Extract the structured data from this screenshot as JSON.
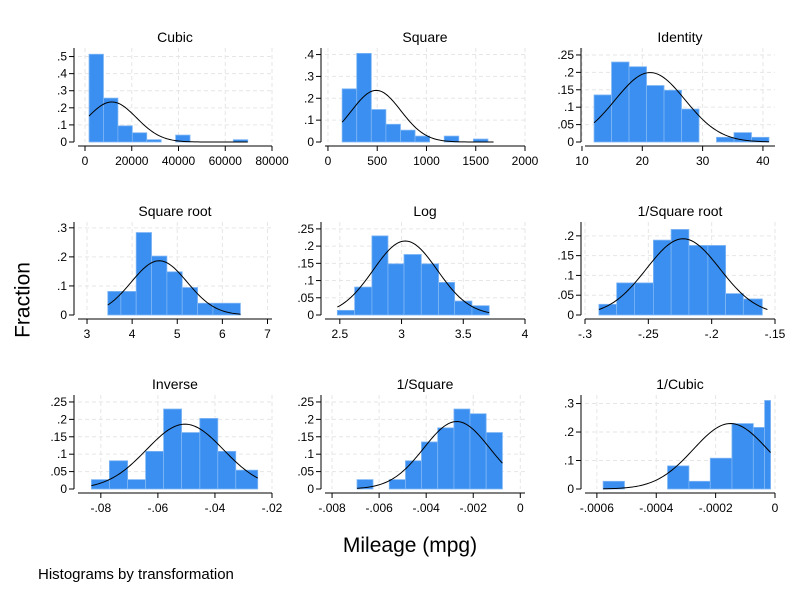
{
  "figure": {
    "ylabel": "Fraction",
    "xlabel": "Mileage (mpg)",
    "note": "Histograms by transformation",
    "bar_color": "#3a8ff0",
    "bar_edge": "#7fb6f5",
    "curve_color": "#000000",
    "grid_color": "#e6e6e6"
  },
  "chart_data": [
    {
      "type": "bar",
      "title": "Cubic",
      "xlim": [
        -3000,
        80000
      ],
      "ylim": [
        0,
        0.55
      ],
      "xticks": [
        0,
        20000,
        40000,
        60000,
        80000
      ],
      "xtick_labels": [
        "0",
        "20000",
        "40000",
        "60000",
        "80000"
      ],
      "yticks": [
        0,
        0.1,
        0.2,
        0.3,
        0.4,
        0.5
      ],
      "ytick_labels": [
        "0",
        ".1",
        ".2",
        ".3",
        ".4",
        ".5"
      ],
      "bins": [
        {
          "x0": 1728,
          "x1": 7900,
          "value": 0.5135
        },
        {
          "x0": 7900,
          "x1": 14072,
          "value": 0.2568
        },
        {
          "x0": 14072,
          "x1": 20244,
          "value": 0.0946
        },
        {
          "x0": 20244,
          "x1": 26416,
          "value": 0.0541
        },
        {
          "x0": 26416,
          "x1": 32588,
          "value": 0.0135
        },
        {
          "x0": 32588,
          "x1": 38760,
          "value": 0.0
        },
        {
          "x0": 38760,
          "x1": 44932,
          "value": 0.0405
        },
        {
          "x0": 44932,
          "x1": 51104,
          "value": 0.0
        },
        {
          "x0": 51104,
          "x1": 57276,
          "value": 0.0
        },
        {
          "x0": 57276,
          "x1": 63448,
          "value": 0.0
        },
        {
          "x0": 63448,
          "x1": 69620,
          "value": 0.0135
        }
      ],
      "normal": {
        "mean": 11500,
        "sd": 10500,
        "xmin": 1728,
        "xmax": 69620
      }
    },
    {
      "type": "bar",
      "title": "Square",
      "xlim": [
        -30,
        2000
      ],
      "ylim": [
        0,
        0.43
      ],
      "xticks": [
        0,
        500,
        1000,
        1500,
        2000
      ],
      "xtick_labels": [
        "0",
        "500",
        "1000",
        "1500",
        "2000"
      ],
      "yticks": [
        0,
        0.1,
        0.2,
        0.3,
        0.4
      ],
      "ytick_labels": [
        "0",
        ".1",
        ".2",
        ".3",
        ".4"
      ],
      "bins": [
        {
          "x0": 144,
          "x1": 292,
          "value": 0.2432
        },
        {
          "x0": 292,
          "x1": 440,
          "value": 0.4054
        },
        {
          "x0": 440,
          "x1": 588,
          "value": 0.1486
        },
        {
          "x0": 588,
          "x1": 736,
          "value": 0.0811
        },
        {
          "x0": 736,
          "x1": 884,
          "value": 0.0541
        },
        {
          "x0": 884,
          "x1": 1032,
          "value": 0.027
        },
        {
          "x0": 1032,
          "x1": 1180,
          "value": 0.0
        },
        {
          "x0": 1180,
          "x1": 1328,
          "value": 0.027
        },
        {
          "x0": 1328,
          "x1": 1476,
          "value": 0.0
        },
        {
          "x0": 1476,
          "x1": 1624,
          "value": 0.0135
        }
      ],
      "normal": {
        "mean": 490,
        "sd": 250,
        "xmin": 144,
        "xmax": 1681
      }
    },
    {
      "type": "bar",
      "title": "Identity",
      "xlim": [
        10.5,
        42
      ],
      "ylim": [
        0,
        0.27
      ],
      "xticks": [
        10,
        20,
        30,
        40
      ],
      "xtick_labels": [
        "10",
        "20",
        "30",
        "40"
      ],
      "yticks": [
        0,
        0.05,
        0.1,
        0.15,
        0.2,
        0.25
      ],
      "ytick_labels": [
        "0",
        ".05",
        ".1",
        ".15",
        ".2",
        ".25"
      ],
      "bins": [
        {
          "x0": 12.0,
          "x1": 14.9,
          "value": 0.1351
        },
        {
          "x0": 14.9,
          "x1": 17.8,
          "value": 0.2297
        },
        {
          "x0": 17.8,
          "x1": 20.7,
          "value": 0.2162
        },
        {
          "x0": 20.7,
          "x1": 23.6,
          "value": 0.1622
        },
        {
          "x0": 23.6,
          "x1": 26.5,
          "value": 0.1486
        },
        {
          "x0": 26.5,
          "x1": 29.4,
          "value": 0.0946
        },
        {
          "x0": 29.4,
          "x1": 32.3,
          "value": 0.0
        },
        {
          "x0": 32.3,
          "x1": 35.2,
          "value": 0.0135
        },
        {
          "x0": 35.2,
          "x1": 38.1,
          "value": 0.027
        },
        {
          "x0": 38.1,
          "x1": 41.0,
          "value": 0.0135
        }
      ],
      "normal": {
        "mean": 21.3,
        "sd": 5.8,
        "xmin": 12,
        "xmax": 41
      }
    },
    {
      "type": "bar",
      "title": "Square root",
      "xlim": [
        2.8,
        7.1
      ],
      "ylim": [
        0,
        0.32
      ],
      "xticks": [
        3,
        4,
        5,
        6,
        7
      ],
      "xtick_labels": [
        "3",
        "4",
        "5",
        "6",
        "7"
      ],
      "yticks": [
        0,
        0.1,
        0.2,
        0.3
      ],
      "ytick_labels": [
        "0",
        ".1",
        ".2",
        ".3"
      ],
      "bins": [
        {
          "x0": 3.46,
          "x1": 3.75,
          "value": 0.0811
        },
        {
          "x0": 3.75,
          "x1": 4.09,
          "value": 0.0811
        },
        {
          "x0": 4.09,
          "x1": 4.43,
          "value": 0.2838
        },
        {
          "x0": 4.43,
          "x1": 4.77,
          "value": 0.2027
        },
        {
          "x0": 4.77,
          "x1": 5.11,
          "value": 0.1486
        },
        {
          "x0": 5.11,
          "x1": 5.45,
          "value": 0.0946
        },
        {
          "x0": 5.45,
          "x1": 5.79,
          "value": 0.0405
        },
        {
          "x0": 5.79,
          "x1": 6.4,
          "value": 0.0405
        }
      ],
      "normal": {
        "mean": 4.6,
        "sd": 0.62,
        "xmin": 3.46,
        "xmax": 6.4
      }
    },
    {
      "type": "bar",
      "title": "Log",
      "xlim": [
        2.38,
        4.0
      ],
      "ylim": [
        0,
        0.27
      ],
      "xticks": [
        2.5,
        3,
        3.5,
        4
      ],
      "xtick_labels": [
        "2.5",
        "3",
        "3.5",
        "4"
      ],
      "yticks": [
        0,
        0.05,
        0.1,
        0.15,
        0.2,
        0.25
      ],
      "ytick_labels": [
        "0",
        ".05",
        ".1",
        ".15",
        ".2",
        ".25"
      ],
      "bins": [
        {
          "x0": 2.48,
          "x1": 2.62,
          "value": 0.0135
        },
        {
          "x0": 2.62,
          "x1": 2.76,
          "value": 0.0811
        },
        {
          "x0": 2.76,
          "x1": 2.89,
          "value": 0.2297
        },
        {
          "x0": 2.89,
          "x1": 3.02,
          "value": 0.1486
        },
        {
          "x0": 3.02,
          "x1": 3.16,
          "value": 0.1757
        },
        {
          "x0": 3.16,
          "x1": 3.3,
          "value": 0.1486
        },
        {
          "x0": 3.3,
          "x1": 3.43,
          "value": 0.0946
        },
        {
          "x0": 3.43,
          "x1": 3.57,
          "value": 0.0405
        },
        {
          "x0": 3.57,
          "x1": 3.71,
          "value": 0.027
        }
      ],
      "normal": {
        "mean": 3.03,
        "sd": 0.26,
        "xmin": 2.48,
        "xmax": 3.71
      }
    },
    {
      "type": "bar",
      "title": "1/Square root",
      "xlim": [
        -0.3,
        -0.15
      ],
      "ylim": [
        0,
        0.235
      ],
      "xticks": [
        -0.3,
        -0.25,
        -0.2,
        -0.15
      ],
      "xtick_labels": [
        "-.3",
        "-.25",
        "-.2",
        "-.15"
      ],
      "yticks": [
        0,
        0.05,
        0.1,
        0.15,
        0.2
      ],
      "ytick_labels": [
        "0",
        ".05",
        ".1",
        ".15",
        ".2"
      ],
      "bins": [
        {
          "x0": -0.289,
          "x1": -0.275,
          "value": 0.027
        },
        {
          "x0": -0.275,
          "x1": -0.261,
          "value": 0.0811
        },
        {
          "x0": -0.261,
          "x1": -0.246,
          "value": 0.0811
        },
        {
          "x0": -0.246,
          "x1": -0.232,
          "value": 0.1892
        },
        {
          "x0": -0.232,
          "x1": -0.218,
          "value": 0.2162
        },
        {
          "x0": -0.218,
          "x1": -0.203,
          "value": 0.1757
        },
        {
          "x0": -0.203,
          "x1": -0.189,
          "value": 0.1757
        },
        {
          "x0": -0.189,
          "x1": -0.175,
          "value": 0.0541
        },
        {
          "x0": -0.175,
          "x1": -0.16,
          "value": 0.0405
        }
      ],
      "normal": {
        "mean": -0.2225,
        "sd": 0.029,
        "xmin": -0.289,
        "xmax": -0.156
      }
    },
    {
      "type": "bar",
      "title": "Inverse",
      "xlim": [
        -0.088,
        -0.02
      ],
      "ylim": [
        0,
        0.27
      ],
      "xticks": [
        -0.08,
        -0.06,
        -0.04,
        -0.02
      ],
      "xtick_labels": [
        "-.08",
        "-.06",
        "-.04",
        "-.02"
      ],
      "yticks": [
        0,
        0.05,
        0.1,
        0.15,
        0.2,
        0.25
      ],
      "ytick_labels": [
        "0",
        ".05",
        ".1",
        ".15",
        ".2",
        ".25"
      ],
      "bins": [
        {
          "x0": -0.0833,
          "x1": -0.077,
          "value": 0.027
        },
        {
          "x0": -0.077,
          "x1": -0.0706,
          "value": 0.0811
        },
        {
          "x0": -0.0706,
          "x1": -0.0643,
          "value": 0.027
        },
        {
          "x0": -0.0643,
          "x1": -0.058,
          "value": 0.1081
        },
        {
          "x0": -0.058,
          "x1": -0.0517,
          "value": 0.2297
        },
        {
          "x0": -0.0517,
          "x1": -0.0453,
          "value": 0.1622
        },
        {
          "x0": -0.0453,
          "x1": -0.039,
          "value": 0.2027
        },
        {
          "x0": -0.039,
          "x1": -0.0327,
          "value": 0.1081
        },
        {
          "x0": -0.0327,
          "x1": -0.025,
          "value": 0.0541
        }
      ],
      "normal": {
        "mean": -0.0505,
        "sd": 0.0135,
        "xmin": -0.0833,
        "xmax": -0.025
      }
    },
    {
      "type": "bar",
      "title": "1/Square",
      "xlim": [
        -0.0083,
        0.0002
      ],
      "ylim": [
        0,
        0.27
      ],
      "xticks": [
        -0.008,
        -0.006,
        -0.004,
        -0.002,
        0
      ],
      "xtick_labels": [
        "-.008",
        "-.006",
        "-.004",
        "-.002",
        "0"
      ],
      "yticks": [
        0,
        0.05,
        0.1,
        0.15,
        0.2,
        0.25
      ],
      "ytick_labels": [
        "0",
        ".05",
        ".1",
        ".15",
        ".2",
        ".25"
      ],
      "bins": [
        {
          "x0": -0.00694,
          "x1": -0.00626,
          "value": 0.027
        },
        {
          "x0": -0.00626,
          "x1": -0.00557,
          "value": 0.0
        },
        {
          "x0": -0.00557,
          "x1": -0.00488,
          "value": 0.027
        },
        {
          "x0": -0.00488,
          "x1": -0.0042,
          "value": 0.0811
        },
        {
          "x0": -0.0042,
          "x1": -0.00351,
          "value": 0.1351
        },
        {
          "x0": -0.00351,
          "x1": -0.00282,
          "value": 0.1757
        },
        {
          "x0": -0.00282,
          "x1": -0.00214,
          "value": 0.2297
        },
        {
          "x0": -0.00214,
          "x1": -0.00145,
          "value": 0.2162
        },
        {
          "x0": -0.00145,
          "x1": -0.00076,
          "value": 0.1622
        }
      ],
      "normal": {
        "mean": -0.0027,
        "sd": 0.0014,
        "xmin": -0.00694,
        "xmax": -0.00076
      }
    },
    {
      "type": "bar",
      "title": "1/Cubic",
      "xlim": [
        -0.00064,
        0.0
      ],
      "ylim": [
        0,
        0.33
      ],
      "xticks": [
        -0.0006,
        -0.0004,
        -0.0002,
        0
      ],
      "xtick_labels": [
        "-.0006",
        "-.0004",
        "-.0002",
        "0"
      ],
      "yticks": [
        0,
        0.1,
        0.2,
        0.3
      ],
      "ytick_labels": [
        "0",
        ".1",
        ".2",
        ".3"
      ],
      "bins": [
        {
          "x0": -0.000579,
          "x1": -0.000507,
          "value": 0.027
        },
        {
          "x0": -0.000507,
          "x1": -0.000435,
          "value": 0.0
        },
        {
          "x0": -0.000435,
          "x1": -0.000362,
          "value": 0.0
        },
        {
          "x0": -0.000362,
          "x1": -0.00029,
          "value": 0.0811
        },
        {
          "x0": -0.00029,
          "x1": -0.000218,
          "value": 0.027
        },
        {
          "x0": -0.000218,
          "x1": -0.000145,
          "value": 0.1081
        },
        {
          "x0": -0.000145,
          "x1": -7.3e-05,
          "value": 0.2297
        },
        {
          "x0": -7.3e-05,
          "x1": -3.5e-05,
          "value": 0.2162
        },
        {
          "x0": -3.5e-05,
          "x1": -1.5e-05,
          "value": 0.3108
        }
      ],
      "normal": {
        "mean": -0.00015,
        "sd": 0.000125,
        "xmin": -0.000579,
        "xmax": -1.5e-05
      }
    }
  ]
}
